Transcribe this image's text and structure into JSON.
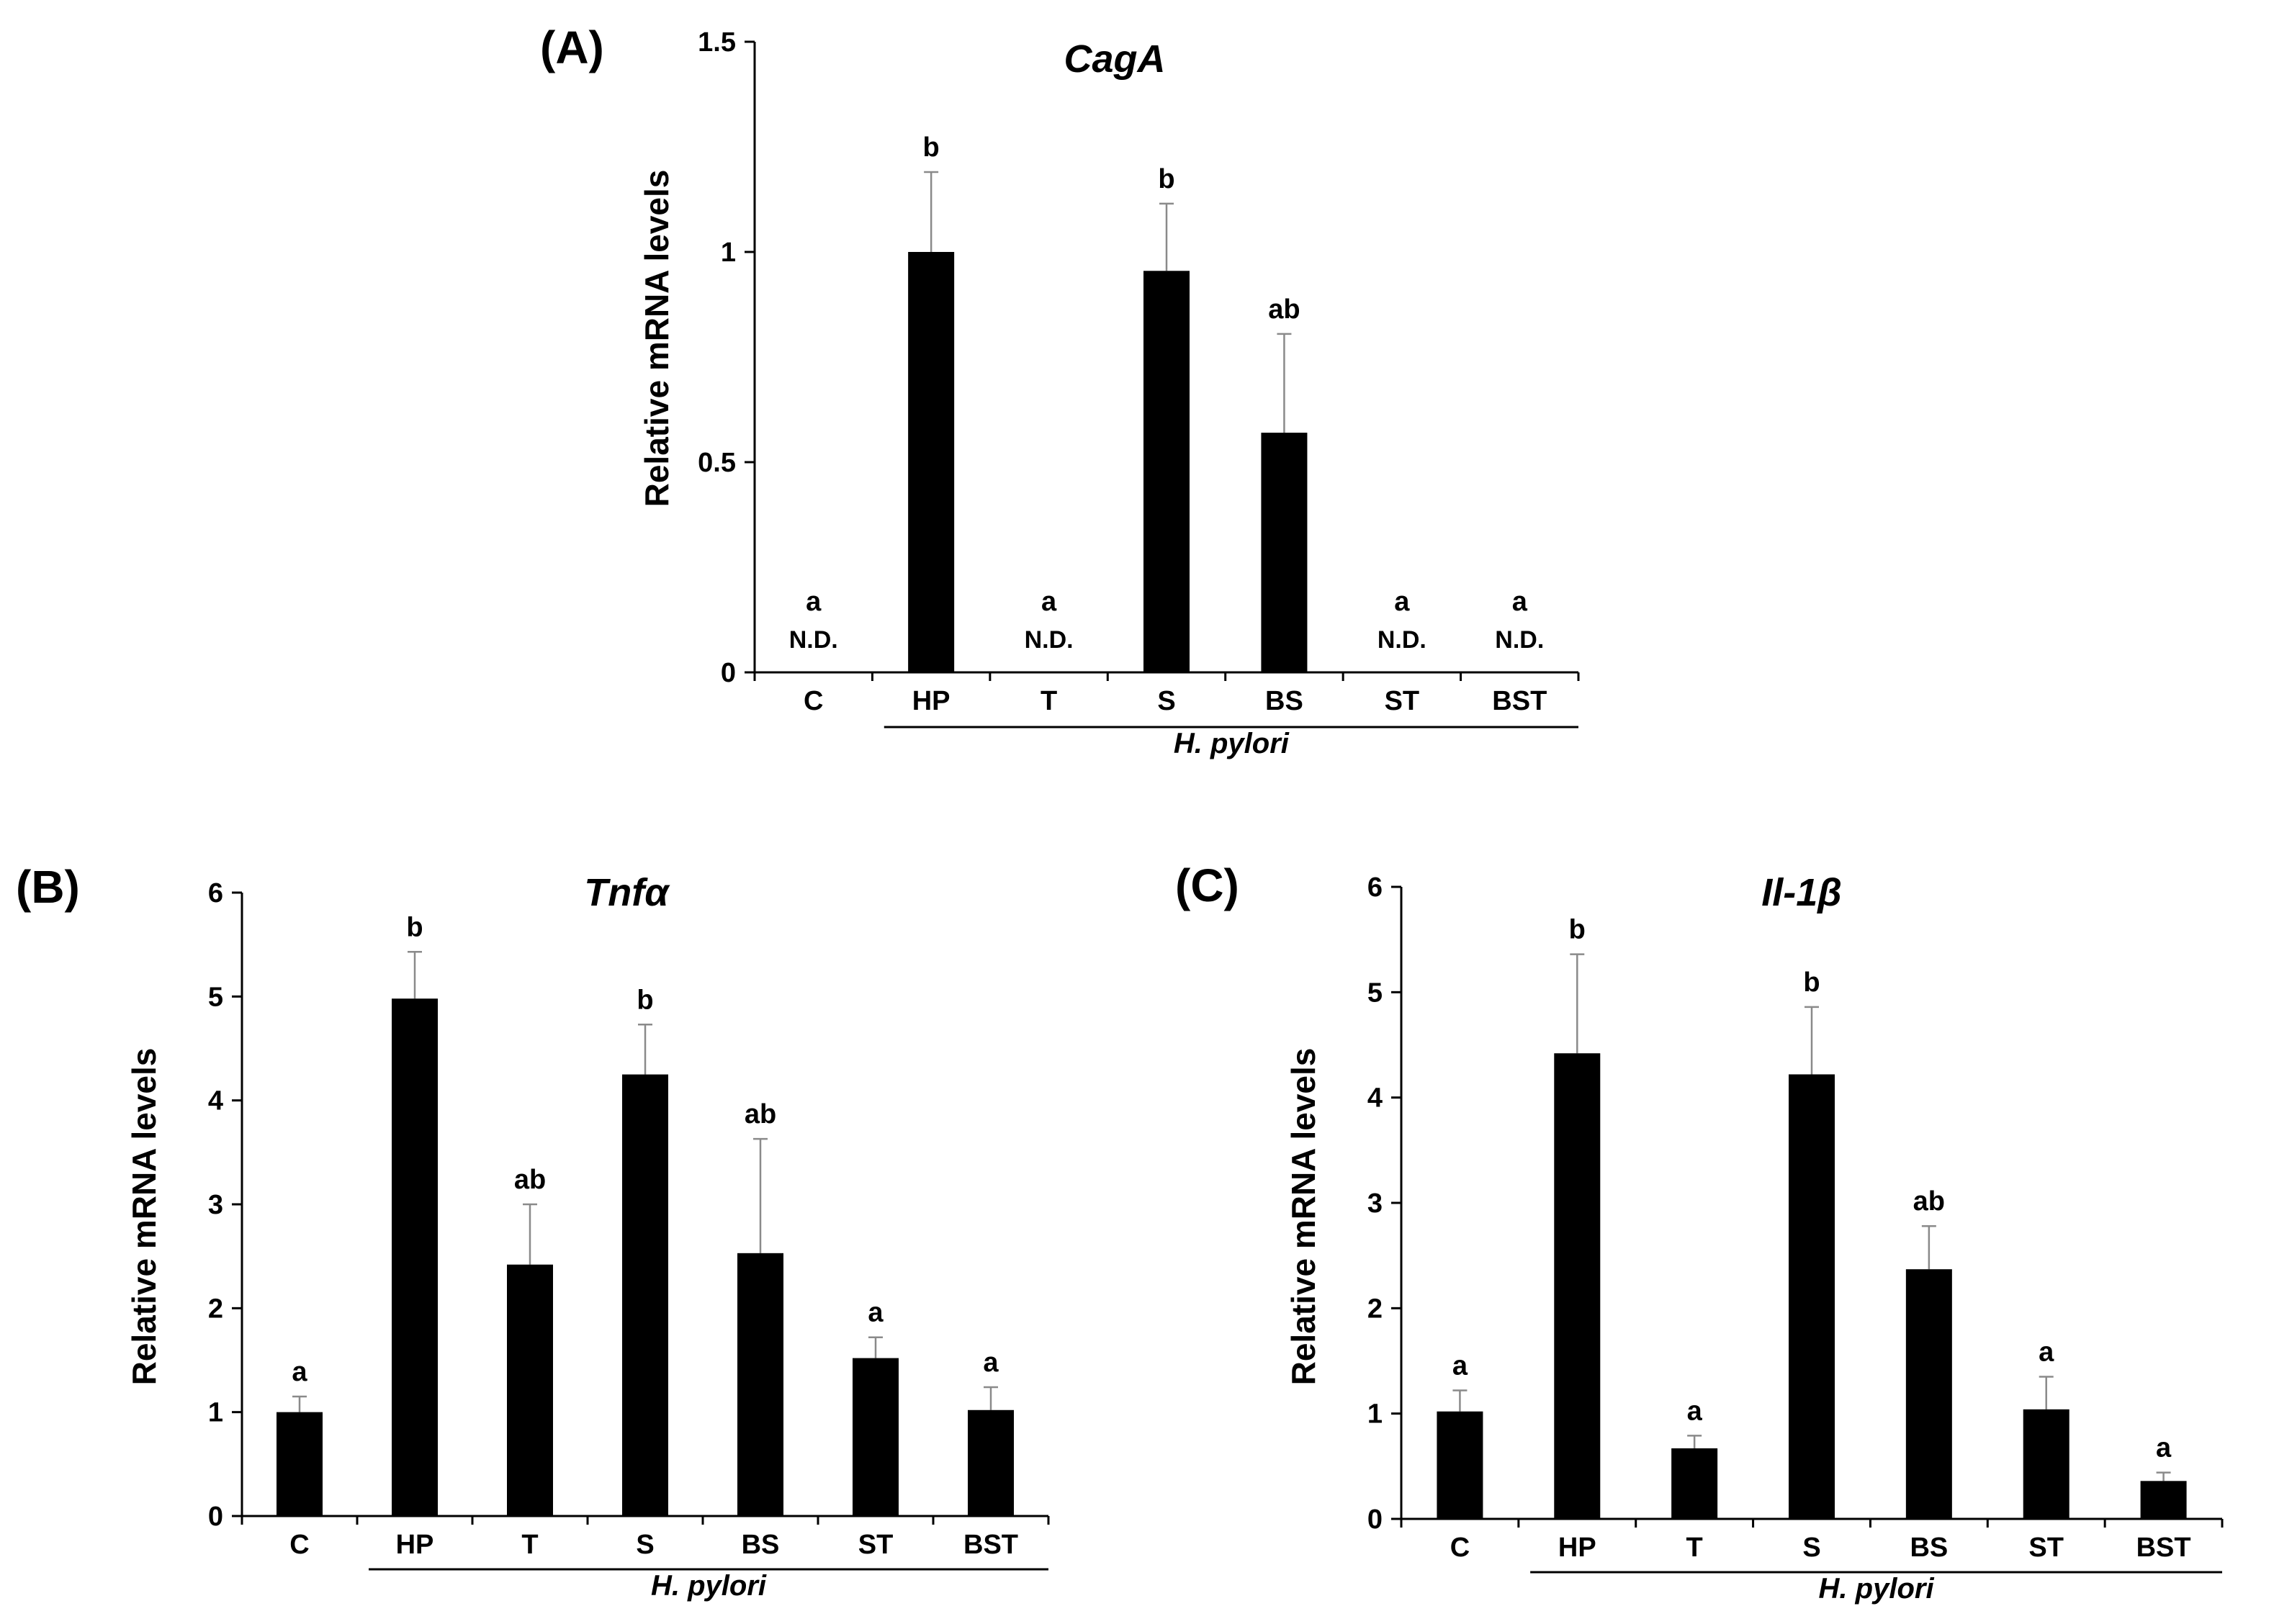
{
  "chart_data": [
    {
      "type": "bar",
      "panel": "(A)",
      "title": "CagA",
      "ylabel": "Relative mRNA levels",
      "xlabel": "",
      "ylim": [
        0,
        1.5
      ],
      "yticks": [
        0,
        0.5,
        1,
        1.5
      ],
      "ytick_labels": [
        "0",
        "0.5",
        "1",
        "1.5"
      ],
      "categories": [
        "C",
        "HP",
        "T",
        "S",
        "BS",
        "ST",
        "BST"
      ],
      "values": [
        0,
        1.0,
        0,
        0.955,
        0.57,
        0,
        0
      ],
      "errors": [
        0,
        0.19,
        0,
        0.16,
        0.235,
        0,
        0
      ],
      "significance": [
        "a",
        "b",
        "a",
        "b",
        "ab",
        "a",
        "a"
      ],
      "not_detected": [
        true,
        false,
        true,
        false,
        false,
        true,
        true
      ],
      "nd_label": "N.D.",
      "group_label": "H. pylori",
      "group_start": "HP",
      "group_end": "BST"
    },
    {
      "type": "bar",
      "panel": "(B)",
      "title": "Tnfα",
      "ylabel": "Relative mRNA levels",
      "xlabel": "",
      "ylim": [
        0,
        6
      ],
      "yticks": [
        0,
        1,
        2,
        3,
        4,
        5,
        6
      ],
      "ytick_labels": [
        "0",
        "1",
        "2",
        "3",
        "4",
        "5",
        "6"
      ],
      "categories": [
        "C",
        "HP",
        "T",
        "S",
        "BS",
        "ST",
        "BST"
      ],
      "values": [
        1.0,
        4.98,
        2.42,
        4.25,
        2.53,
        1.52,
        1.02
      ],
      "errors": [
        0.15,
        0.45,
        0.58,
        0.48,
        1.1,
        0.2,
        0.22
      ],
      "significance": [
        "a",
        "b",
        "ab",
        "b",
        "ab",
        "a",
        "a"
      ],
      "not_detected": [
        false,
        false,
        false,
        false,
        false,
        false,
        false
      ],
      "nd_label": "",
      "group_label": "H. pylori",
      "group_start": "HP",
      "group_end": "BST"
    },
    {
      "type": "bar",
      "panel": "(C)",
      "title": "Il-1β",
      "ylabel": "Relative mRNA levels",
      "xlabel": "",
      "ylim": [
        0,
        6
      ],
      "yticks": [
        0,
        1,
        2,
        3,
        4,
        5,
        6
      ],
      "ytick_labels": [
        "0",
        "1",
        "2",
        "3",
        "4",
        "5",
        "6"
      ],
      "categories": [
        "C",
        "HP",
        "T",
        "S",
        "BS",
        "ST",
        "BST"
      ],
      "values": [
        1.02,
        4.42,
        0.67,
        4.22,
        2.37,
        1.04,
        0.36
      ],
      "errors": [
        0.2,
        0.94,
        0.12,
        0.64,
        0.41,
        0.31,
        0.08
      ],
      "significance": [
        "a",
        "b",
        "a",
        "b",
        "ab",
        "a",
        "a"
      ],
      "not_detected": [
        false,
        false,
        false,
        false,
        false,
        false,
        false
      ],
      "nd_label": "",
      "group_label": "H. pylori",
      "group_start": "HP",
      "group_end": "BST"
    }
  ],
  "colors": {
    "bar": "#000000",
    "axis": "#000000",
    "error_bar": "#8a8a8a",
    "background": "#ffffff"
  }
}
